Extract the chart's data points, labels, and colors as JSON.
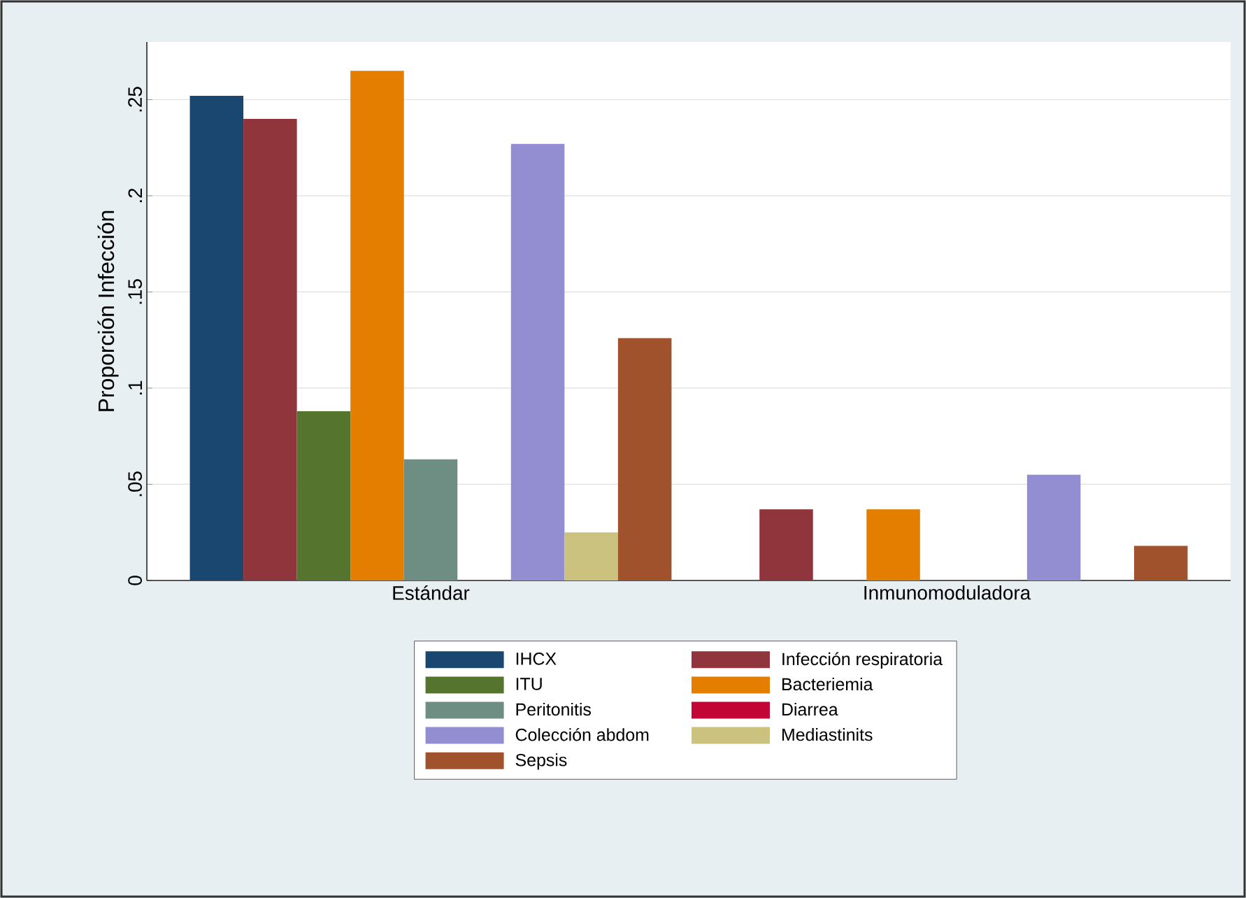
{
  "chart_data": {
    "type": "bar",
    "ylabel": "Proporción Infección",
    "categories": [
      "Estándar",
      "Inmunomoduladora"
    ],
    "series": [
      {
        "name": "IHCX",
        "color": "#1a476f",
        "values": [
          0.252,
          0
        ]
      },
      {
        "name": "Infección respiratoria",
        "color": "#90353b",
        "values": [
          0.24,
          0.037
        ]
      },
      {
        "name": "ITU",
        "color": "#55752f",
        "values": [
          0.088,
          0
        ]
      },
      {
        "name": "Bacteriemia",
        "color": "#e37e00",
        "values": [
          0.265,
          0.037
        ]
      },
      {
        "name": "Peritonitis",
        "color": "#6e8e84",
        "values": [
          0.063,
          0
        ]
      },
      {
        "name": "Diarrea",
        "color": "#c10534",
        "values": [
          0,
          0
        ]
      },
      {
        "name": "Colección abdom",
        "color": "#938dd2",
        "values": [
          0.227,
          0.055
        ]
      },
      {
        "name": "Mediastinits",
        "color": "#cac27e",
        "values": [
          0.025,
          0
        ]
      },
      {
        "name": "Sepsis",
        "color": "#a0522d",
        "values": [
          0.126,
          0.018
        ]
      }
    ],
    "ylim": [
      0,
      0.28
    ],
    "yticks": [
      0,
      {
        "value": 0.05,
        "label": ".05"
      },
      {
        "value": 0.1,
        "label": ".1"
      },
      {
        "value": 0.15,
        "label": ".15"
      },
      {
        "value": 0.2,
        "label": ".2"
      },
      {
        "value": 0.25,
        "label": ".25"
      }
    ],
    "grid": "y",
    "legend": "bottom"
  }
}
